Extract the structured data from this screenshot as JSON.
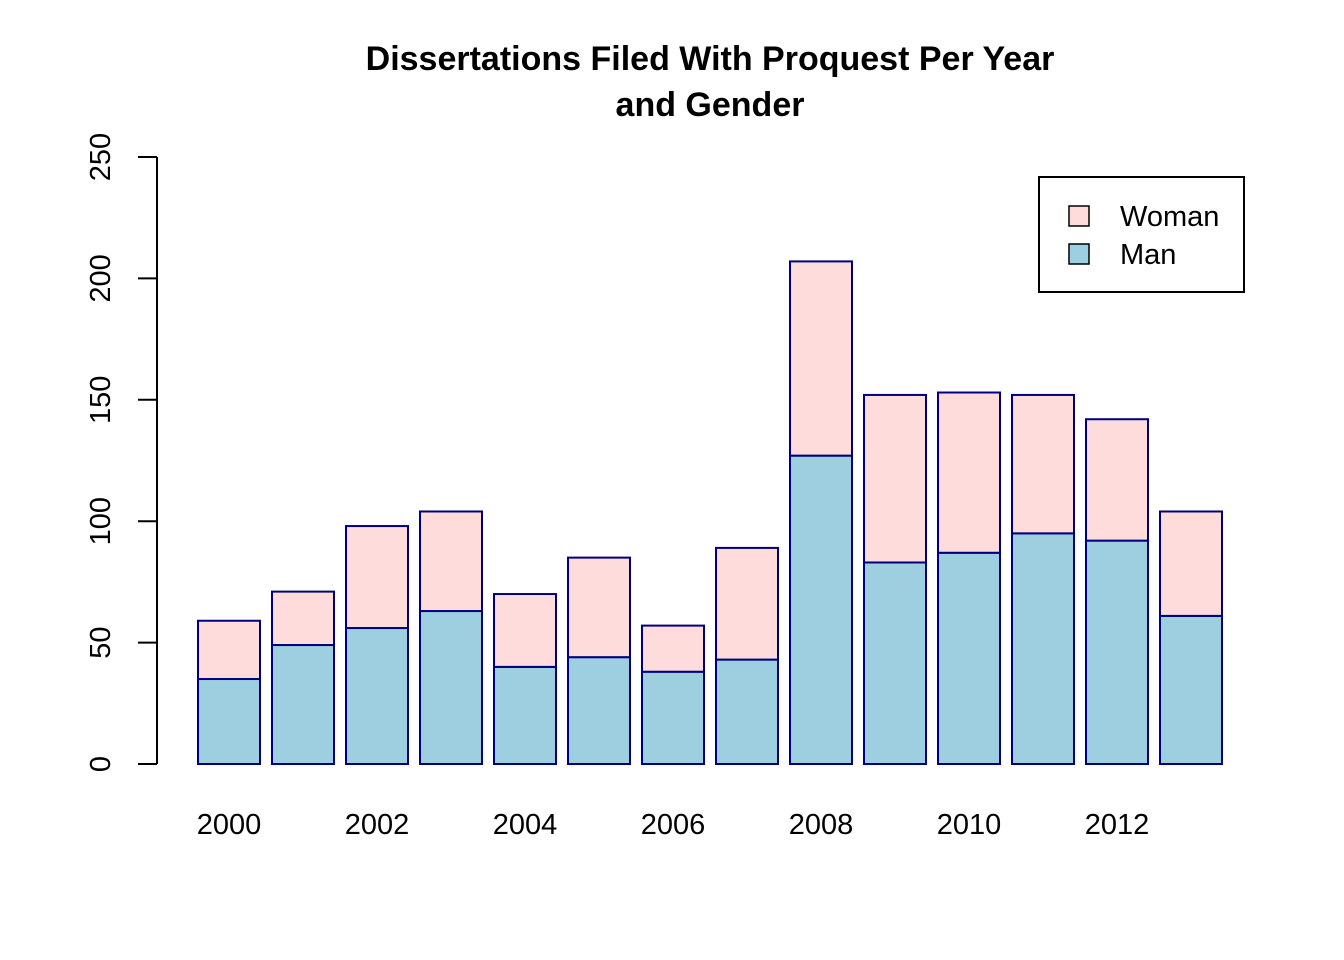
{
  "chart_data": {
    "type": "bar",
    "stacked": true,
    "title": [
      "Dissertations Filed With Proquest Per Year",
      "and Gender"
    ],
    "xlabel": "",
    "ylabel": "",
    "categories": [
      "2000",
      "2001",
      "2002",
      "2003",
      "2004",
      "2005",
      "2006",
      "2007",
      "2008",
      "2009",
      "2010",
      "2011",
      "2012",
      "2013"
    ],
    "x_tick_labels_shown": [
      "2000",
      "2002",
      "2004",
      "2006",
      "2008",
      "2010",
      "2012"
    ],
    "yticks": [
      0,
      50,
      100,
      150,
      200,
      250
    ],
    "ylim": [
      0,
      250
    ],
    "series": [
      {
        "name": "Man",
        "color": "#9ecfe0",
        "values": [
          35,
          49,
          56,
          63,
          40,
          44,
          38,
          43,
          127,
          83,
          87,
          95,
          92,
          61
        ]
      },
      {
        "name": "Woman",
        "color": "#ffdcdc",
        "values": [
          24,
          22,
          42,
          41,
          30,
          41,
          19,
          46,
          80,
          69,
          66,
          57,
          50,
          43
        ]
      }
    ],
    "bar_border_color": "#00007f",
    "legend": {
      "position": "top-right",
      "entries": [
        {
          "label": "Woman",
          "color": "#ffdcdc"
        },
        {
          "label": "Man",
          "color": "#9ecfe0"
        }
      ]
    },
    "grid": false
  }
}
